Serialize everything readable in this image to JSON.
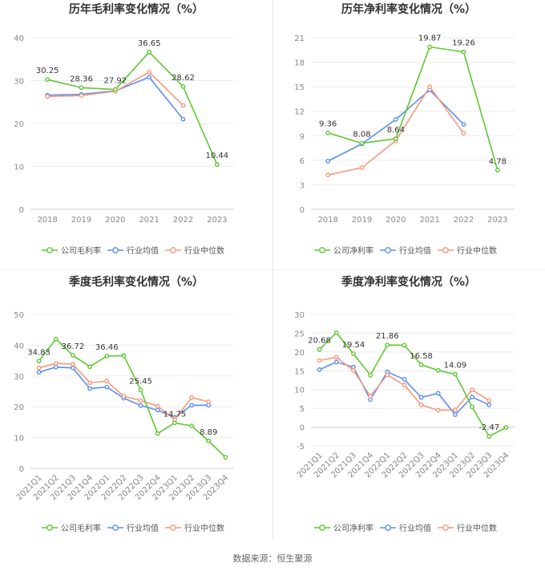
{
  "colors": {
    "company": "#5ec832",
    "avg": "#5b8ff0",
    "median": "#f59a7c",
    "grid": "#ebebeb",
    "axis_text": "#888888",
    "title": "#333333"
  },
  "icon": "legend-line-circle-icon",
  "footer": {
    "source": "数据来源：恒生聚源"
  },
  "chart_data": [
    {
      "type": "line",
      "title": "历年毛利率变化情况（%）",
      "x": [
        "2018",
        "2019",
        "2020",
        "2021",
        "2022",
        "2023"
      ],
      "ylim": [
        0,
        40
      ],
      "yticks": [
        0,
        10,
        20,
        30,
        40
      ],
      "grid": true,
      "legend_position": "bottom",
      "series": [
        {
          "name": "公司毛利率",
          "key": "company",
          "values": [
            30.25,
            28.36,
            27.92,
            36.65,
            28.62,
            10.44
          ],
          "labels": [
            "30.25",
            "28.36",
            "27.92",
            "36.65",
            "28.62",
            "10.44"
          ]
        },
        {
          "name": "行业均值",
          "key": "avg",
          "values": [
            26.6,
            26.8,
            27.6,
            30.8,
            21.0,
            null
          ],
          "labels": []
        },
        {
          "name": "行业中位数",
          "key": "median",
          "values": [
            26.3,
            26.5,
            27.5,
            32.0,
            24.2,
            null
          ],
          "labels": []
        }
      ]
    },
    {
      "type": "line",
      "title": "历年净利率变化情况（%）",
      "x": [
        "2018",
        "2019",
        "2020",
        "2021",
        "2022",
        "2023"
      ],
      "ylim": [
        0,
        21
      ],
      "yticks": [
        0,
        3,
        6,
        9,
        12,
        15,
        18,
        21
      ],
      "grid": true,
      "legend_position": "bottom",
      "series": [
        {
          "name": "公司净利率",
          "key": "company",
          "values": [
            9.36,
            8.08,
            8.64,
            19.87,
            19.26,
            4.78
          ],
          "labels": [
            "9.36",
            "8.08",
            "8.64",
            "19.87",
            "19.26",
            "4.78"
          ]
        },
        {
          "name": "行业均值",
          "key": "avg",
          "values": [
            5.9,
            8.0,
            11.0,
            14.6,
            10.4,
            null
          ],
          "labels": []
        },
        {
          "name": "行业中位数",
          "key": "median",
          "values": [
            4.2,
            5.1,
            8.4,
            15.0,
            9.3,
            null
          ],
          "labels": []
        }
      ]
    },
    {
      "type": "line",
      "title": "季度毛利率变化情况（%）",
      "x": [
        "2021Q1",
        "2021Q2",
        "2021Q3",
        "2021Q4",
        "2022Q1",
        "2022Q2",
        "2022Q3",
        "2022Q4",
        "2023Q1",
        "2023Q2",
        "2023Q3",
        "2023Q4"
      ],
      "ylim": [
        0,
        50
      ],
      "yticks": [
        0,
        10,
        20,
        30,
        40,
        50
      ],
      "grid": true,
      "legend_position": "bottom",
      "series": [
        {
          "name": "公司毛利率",
          "key": "company",
          "values": [
            34.83,
            42.0,
            36.72,
            33.0,
            36.46,
            36.6,
            25.45,
            11.3,
            14.75,
            13.8,
            8.89,
            3.6
          ],
          "labels": [
            "34.83",
            "",
            "36.72",
            "",
            "36.46",
            "",
            "25.45",
            "",
            "14.75",
            "",
            "8.89",
            ""
          ]
        },
        {
          "name": "行业均值",
          "key": "avg",
          "values": [
            31.2,
            32.9,
            32.6,
            25.9,
            26.4,
            22.8,
            20.4,
            18.9,
            16.5,
            20.5,
            20.5,
            null
          ],
          "labels": []
        },
        {
          "name": "行业中位数",
          "key": "median",
          "values": [
            32.6,
            34.1,
            33.8,
            27.8,
            28.3,
            23.4,
            22.0,
            20.2,
            15.8,
            23.0,
            21.6,
            null
          ],
          "labels": []
        }
      ]
    },
    {
      "type": "line",
      "title": "季度净利率变化情况（%）",
      "x": [
        "2021Q1",
        "2021Q2",
        "2021Q3",
        "2021Q4",
        "2022Q1",
        "2022Q2",
        "2022Q3",
        "2022Q4",
        "2023Q1",
        "2023Q2",
        "2023Q3",
        "2023Q4"
      ],
      "ylim": [
        -5,
        30
      ],
      "yticks": [
        -5,
        0,
        5,
        10,
        15,
        20,
        25,
        30
      ],
      "grid": true,
      "legend_position": "bottom",
      "series": [
        {
          "name": "公司净利率",
          "key": "company",
          "values": [
            20.68,
            25.1,
            19.54,
            13.8,
            21.86,
            21.8,
            16.58,
            15.1,
            14.09,
            5.4,
            -2.47,
            -0.1
          ],
          "labels": [
            "20.68",
            "",
            "19.54",
            "",
            "21.86",
            "",
            "16.58",
            "",
            "14.09",
            "",
            "-2.47",
            ""
          ]
        },
        {
          "name": "行业均值",
          "key": "avg",
          "values": [
            15.3,
            17.3,
            16.0,
            7.3,
            14.7,
            12.7,
            7.9,
            9.0,
            3.3,
            8.0,
            5.9,
            null
          ],
          "labels": []
        },
        {
          "name": "行业中位数",
          "key": "median",
          "values": [
            17.7,
            18.6,
            15.1,
            8.2,
            13.9,
            11.2,
            5.9,
            4.5,
            4.6,
            9.9,
            7.1,
            null
          ],
          "labels": []
        }
      ]
    }
  ]
}
